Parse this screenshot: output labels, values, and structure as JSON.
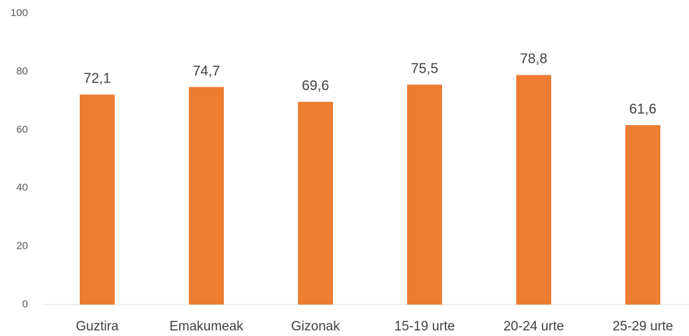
{
  "chart_data": {
    "type": "bar",
    "categories": [
      "Guztira",
      "Emakumeak",
      "Gizonak",
      "15-19 urte",
      "20-24 urte",
      "25-29 urte"
    ],
    "values": [
      72.1,
      74.7,
      69.6,
      75.5,
      78.8,
      61.6
    ],
    "value_labels": [
      "72,1",
      "74,7",
      "69,6",
      "75,5",
      "78,8",
      "61,6"
    ],
    "color": "#ed7d31",
    "ylim": [
      0,
      100
    ],
    "yticks": [
      0,
      20,
      40,
      60,
      80,
      100
    ],
    "grid": false
  }
}
